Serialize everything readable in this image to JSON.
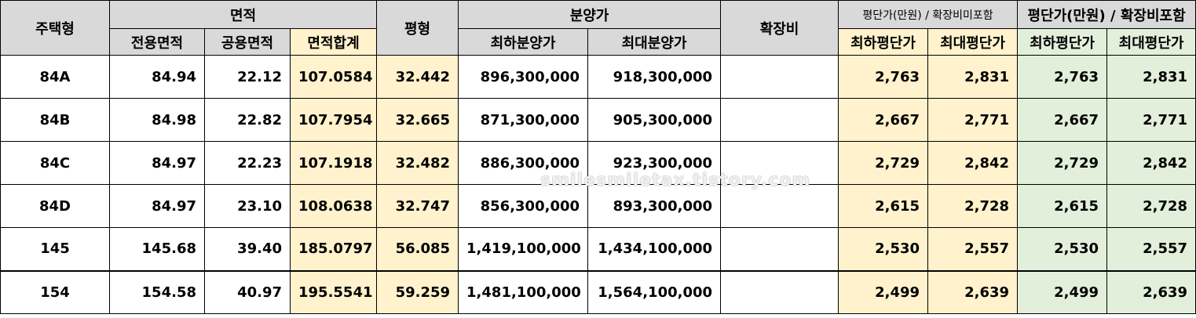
{
  "header": {
    "type": "주택형",
    "area_group": "면적",
    "exclusive": "전용면적",
    "common": "공용면적",
    "area_total": "면적합계",
    "pyeong": "평형",
    "price_group": "분양가",
    "min_price": "최하분양가",
    "max_price": "최대분양가",
    "expansion": "확장비",
    "unit_price_excl": "평단가(만원) / 확장비미포함",
    "unit_price_incl": "평단가(만원) / 확장비포함",
    "min_unit": "최하평단가",
    "max_unit": "최대평단가"
  },
  "rows": [
    {
      "type": "84A",
      "exclusive": "84.94",
      "common": "22.12",
      "total": "107.0584",
      "pyeong": "32.442",
      "min_price": "896,300,000",
      "max_price": "918,300,000",
      "expansion": "",
      "min_unit_excl": "2,763",
      "max_unit_excl": "2,831",
      "min_unit_incl": "2,763",
      "max_unit_incl": "2,831"
    },
    {
      "type": "84B",
      "exclusive": "84.98",
      "common": "22.82",
      "total": "107.7954",
      "pyeong": "32.665",
      "min_price": "871,300,000",
      "max_price": "905,300,000",
      "expansion": "",
      "min_unit_excl": "2,667",
      "max_unit_excl": "2,771",
      "min_unit_incl": "2,667",
      "max_unit_incl": "2,771"
    },
    {
      "type": "84C",
      "exclusive": "84.97",
      "common": "22.23",
      "total": "107.1918",
      "pyeong": "32.482",
      "min_price": "886,300,000",
      "max_price": "923,300,000",
      "expansion": "",
      "min_unit_excl": "2,729",
      "max_unit_excl": "2,842",
      "min_unit_incl": "2,729",
      "max_unit_incl": "2,842"
    },
    {
      "type": "84D",
      "exclusive": "84.97",
      "common": "23.10",
      "total": "108.0638",
      "pyeong": "32.747",
      "min_price": "856,300,000",
      "max_price": "893,300,000",
      "expansion": "",
      "min_unit_excl": "2,615",
      "max_unit_excl": "2,728",
      "min_unit_incl": "2,615",
      "max_unit_incl": "2,728"
    },
    {
      "type": "145",
      "exclusive": "145.68",
      "common": "39.40",
      "total": "185.0797",
      "pyeong": "56.085",
      "min_price": "1,419,100,000",
      "max_price": "1,434,100,000",
      "expansion": "",
      "min_unit_excl": "2,530",
      "max_unit_excl": "2,557",
      "min_unit_incl": "2,530",
      "max_unit_incl": "2,557"
    },
    {
      "type": "154",
      "exclusive": "154.58",
      "common": "40.97",
      "total": "195.5541",
      "pyeong": "59.259",
      "min_price": "1,481,100,000",
      "max_price": "1,564,100,000",
      "expansion": "",
      "min_unit_excl": "2,499",
      "max_unit_excl": "2,639",
      "min_unit_incl": "2,499",
      "max_unit_incl": "2,639"
    }
  ],
  "watermark": "smilesmiletax.tistory.com"
}
